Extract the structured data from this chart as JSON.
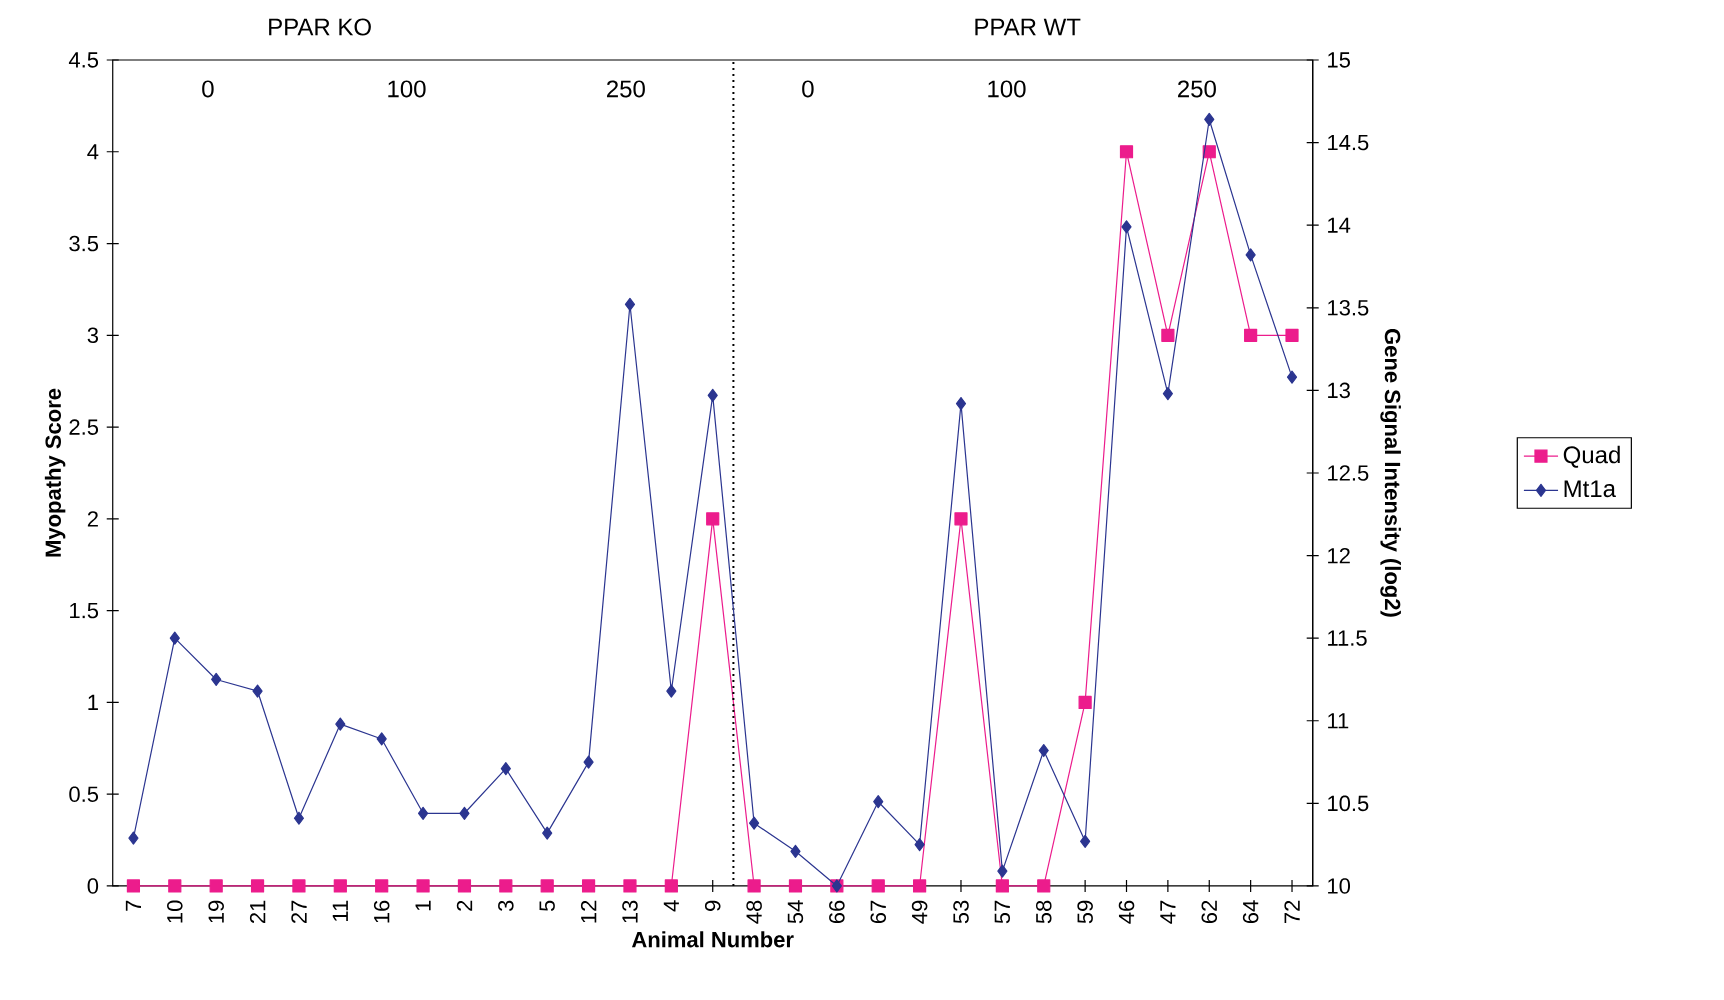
{
  "chart_data": {
    "type": "line",
    "xlabel": "Animal Number",
    "ylabel": "Myopathy Score",
    "y2label": "Gene Signal Intensity (log2)",
    "categories": [
      "7",
      "10",
      "19",
      "21",
      "27",
      "11",
      "16",
      "1",
      "2",
      "3",
      "5",
      "12",
      "13",
      "4",
      "9",
      "48",
      "54",
      "66",
      "67",
      "49",
      "53",
      "57",
      "58",
      "59",
      "46",
      "47",
      "62",
      "64",
      "72"
    ],
    "series": [
      {
        "name": "Quad",
        "color": "#ec1c8c",
        "marker": "square",
        "values": [
          0,
          0,
          0,
          0,
          0,
          0,
          0,
          0,
          0,
          0,
          0,
          0,
          0,
          0,
          2,
          0,
          0,
          0,
          0,
          0,
          2,
          0,
          0,
          1,
          4,
          3,
          4,
          3,
          3
        ]
      },
      {
        "name": "Mt1a",
        "color": "#2b3590",
        "marker": "diamond",
        "axis": "y2",
        "values": [
          10.29,
          11.5,
          11.25,
          11.18,
          10.41,
          10.98,
          10.89,
          10.44,
          10.44,
          10.71,
          10.32,
          10.75,
          13.52,
          11.18,
          12.97,
          10.38,
          10.21,
          10.0,
          10.51,
          10.25,
          12.92,
          10.09,
          10.82,
          10.27,
          13.99,
          12.98,
          14.64,
          13.82,
          13.08
        ]
      }
    ],
    "ylim": [
      0,
      4.5
    ],
    "yticks": [
      0,
      0.5,
      1,
      1.5,
      2,
      2.5,
      3,
      3.5,
      4,
      4.5
    ],
    "y2lim": [
      10,
      15
    ],
    "y2ticks": [
      10,
      10.5,
      11,
      11.5,
      12,
      12.5,
      13,
      13.5,
      14,
      14.5,
      15
    ],
    "annotations": [
      "PPAR KO",
      "PPAR WT",
      "0",
      "100",
      "250",
      "0",
      "100",
      "250"
    ],
    "legend": "right",
    "grid": false
  }
}
